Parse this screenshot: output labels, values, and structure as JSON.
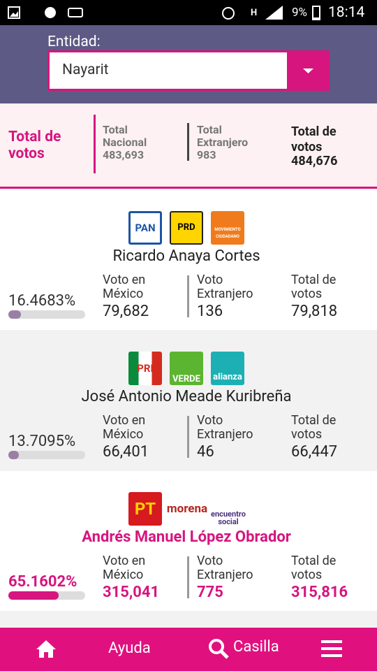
{
  "status_bar": {
    "battery": "9%",
    "time": "18:14"
  },
  "entity": {
    "label": "Entidad:",
    "selected": "Nayarit"
  },
  "totals": {
    "title": "Total de votos",
    "columns": [
      {
        "label": "Total Nacional",
        "value": "483,693"
      },
      {
        "label": "Total Extranjero",
        "value": "983"
      },
      {
        "label": "Total de votos",
        "value": "484,676"
      }
    ]
  },
  "candidates": [
    {
      "parties": [
        "PAN",
        "PRD",
        "MOVIMIENTO CIUDADANO"
      ],
      "name": "Ricardo Anaya Cortes",
      "percent": "16.4683%",
      "columns": [
        {
          "label": "Voto en México",
          "value": "79,682"
        },
        {
          "label": "Voto Extranjero",
          "value": "136"
        },
        {
          "label": "Total de votos",
          "value": "79,818"
        }
      ]
    },
    {
      "parties": [
        "PRI",
        "VERDE",
        "alianza"
      ],
      "name": "José Antonio Meade Kuribreña",
      "percent": "13.7095%",
      "columns": [
        {
          "label": "Voto en México",
          "value": "66,401"
        },
        {
          "label": "Voto Extranjero",
          "value": "46"
        },
        {
          "label": "Total de votos",
          "value": "66,447"
        }
      ]
    },
    {
      "parties": [
        "PT",
        "morena",
        "encuentro social"
      ],
      "name": "Andrés Manuel López Obrador",
      "percent": "65.1602%",
      "columns": [
        {
          "label": "Voto en México",
          "value": "315,041"
        },
        {
          "label": "Voto Extranjero",
          "value": "775"
        },
        {
          "label": "Total de votos",
          "value": "315,816"
        }
      ]
    }
  ],
  "nav": {
    "help": "Ayuda",
    "search": "Casilla"
  }
}
